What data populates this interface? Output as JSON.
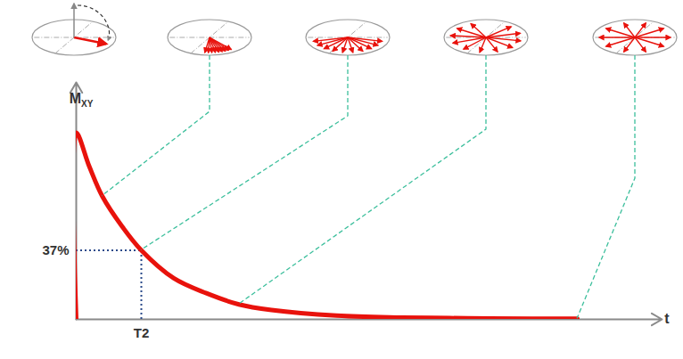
{
  "chart_data": {
    "type": "line",
    "x": [
      0,
      0,
      0.2,
      0.4,
      0.7,
      1,
      1.5,
      2,
      2.5,
      3,
      4,
      5,
      6,
      7,
      7.7
    ],
    "values": [
      0,
      100,
      82,
      66,
      50,
      37,
      22,
      14,
      8,
      5,
      2,
      1,
      0.6,
      0.4,
      0.3
    ],
    "color": "#e8120c",
    "xlim": [
      0,
      9
    ],
    "ylim": [
      0,
      127
    ],
    "xticks": [
      {
        "value": 1,
        "label": "T2"
      }
    ],
    "yticks": [
      {
        "value": 37,
        "label": "37%"
      }
    ],
    "x_label": "t",
    "y_label": "MXY",
    "grid": false
  }
}
